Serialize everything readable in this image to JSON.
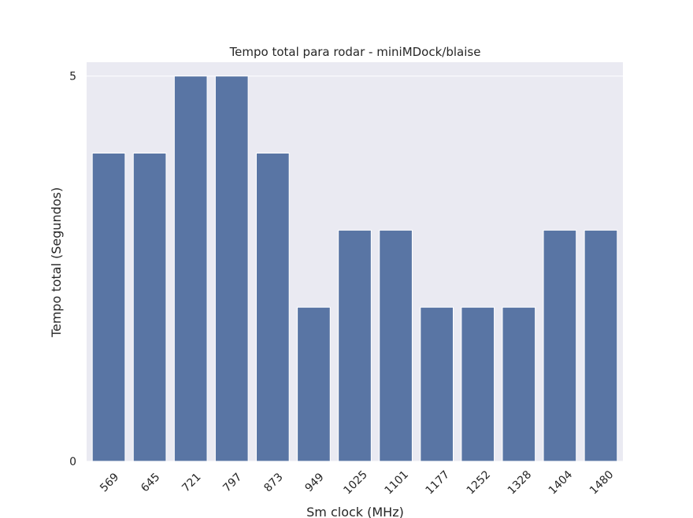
{
  "chart_data": {
    "type": "bar",
    "title": "Tempo total para rodar - miniMDock/blaise",
    "xlabel": "Sm clock (MHz)",
    "ylabel": "Tempo total (Segundos)",
    "categories": [
      "569",
      "645",
      "721",
      "797",
      "873",
      "949",
      "1025",
      "1101",
      "1177",
      "1252",
      "1328",
      "1404",
      "1480"
    ],
    "values": [
      4,
      4,
      5,
      5,
      4,
      2,
      3,
      3,
      2,
      2,
      2,
      3,
      3
    ],
    "ylim": [
      0,
      5.18
    ],
    "yticks": [
      0,
      5
    ],
    "grid": true,
    "colors": {
      "bar": "#5975a4",
      "background": "#eaeaf2",
      "grid": "#ffffff"
    }
  }
}
